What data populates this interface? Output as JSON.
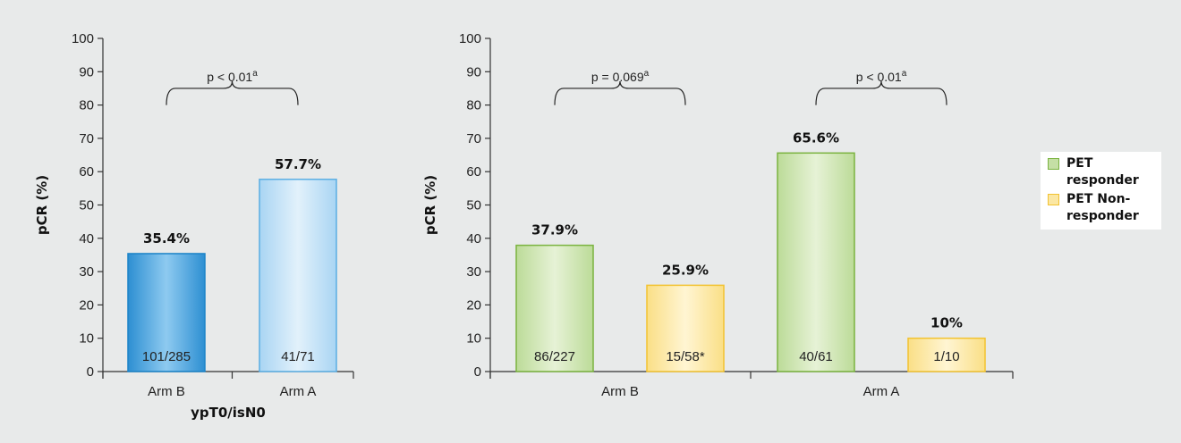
{
  "colors": {
    "background": "#e8eaea",
    "arm_b_fill": "#3a9ad6",
    "arm_b_fill_light": "#8cc8ee",
    "arm_b_stroke": "#1b83c8",
    "arm_a_fill": "#bfe0f6",
    "arm_a_stroke": "#5aaee3",
    "responder_fill": "#c5dfa5",
    "responder_stroke": "#7ab33f",
    "nonresponder_fill": "#fbe7a3",
    "nonresponder_stroke": "#f2c230",
    "axis": "#333333"
  },
  "legend": {
    "items": [
      {
        "label": "PET responder",
        "color": "#c5dfa5",
        "stroke": "#7ab33f"
      },
      {
        "label": "PET Non-responder",
        "color": "#fbe7a3",
        "stroke": "#f2c230"
      }
    ]
  },
  "chart_data": [
    {
      "type": "bar",
      "ylabel": "pCR (%)",
      "xlabel": "ypT0/isN0",
      "ylim": [
        0,
        100
      ],
      "yticks": [
        0,
        10,
        20,
        30,
        40,
        50,
        60,
        70,
        80,
        90,
        100
      ],
      "categories": [
        "Arm B",
        "Arm A"
      ],
      "bars": [
        {
          "category": "Arm B",
          "value": 35.4,
          "value_label": "35.4%",
          "count_label": "101/285",
          "style": "arm_b"
        },
        {
          "category": "Arm A",
          "value": 57.7,
          "value_label": "57.7%",
          "count_label": "41/71",
          "style": "arm_a"
        }
      ],
      "annotations": [
        {
          "text": "p < 0.01",
          "superscript": "a",
          "between": [
            "Arm B",
            "Arm A"
          ],
          "y": 88
        }
      ]
    },
    {
      "type": "bar",
      "ylabel": "pCR (%)",
      "xlabel": "",
      "ylim": [
        0,
        100
      ],
      "yticks": [
        0,
        10,
        20,
        30,
        40,
        50,
        60,
        70,
        80,
        90,
        100
      ],
      "categories": [
        "Arm B",
        "Arm A"
      ],
      "series": [
        {
          "name": "PET responder",
          "style": "responder",
          "values": [
            37.9,
            65.6
          ],
          "value_labels": [
            "37.9%",
            "65.6%"
          ],
          "count_labels": [
            "86/227",
            "40/61"
          ]
        },
        {
          "name": "PET Non-responder",
          "style": "nonresponder",
          "values": [
            25.9,
            10
          ],
          "value_labels": [
            "25.9%",
            "10%"
          ],
          "count_labels": [
            "15/58*",
            "1/10"
          ]
        }
      ],
      "annotations": [
        {
          "text": "p = 0.069",
          "superscript": "a",
          "category": "Arm B",
          "y": 88
        },
        {
          "text": "p < 0.01",
          "superscript": "a",
          "category": "Arm A",
          "y": 88
        }
      ]
    }
  ]
}
